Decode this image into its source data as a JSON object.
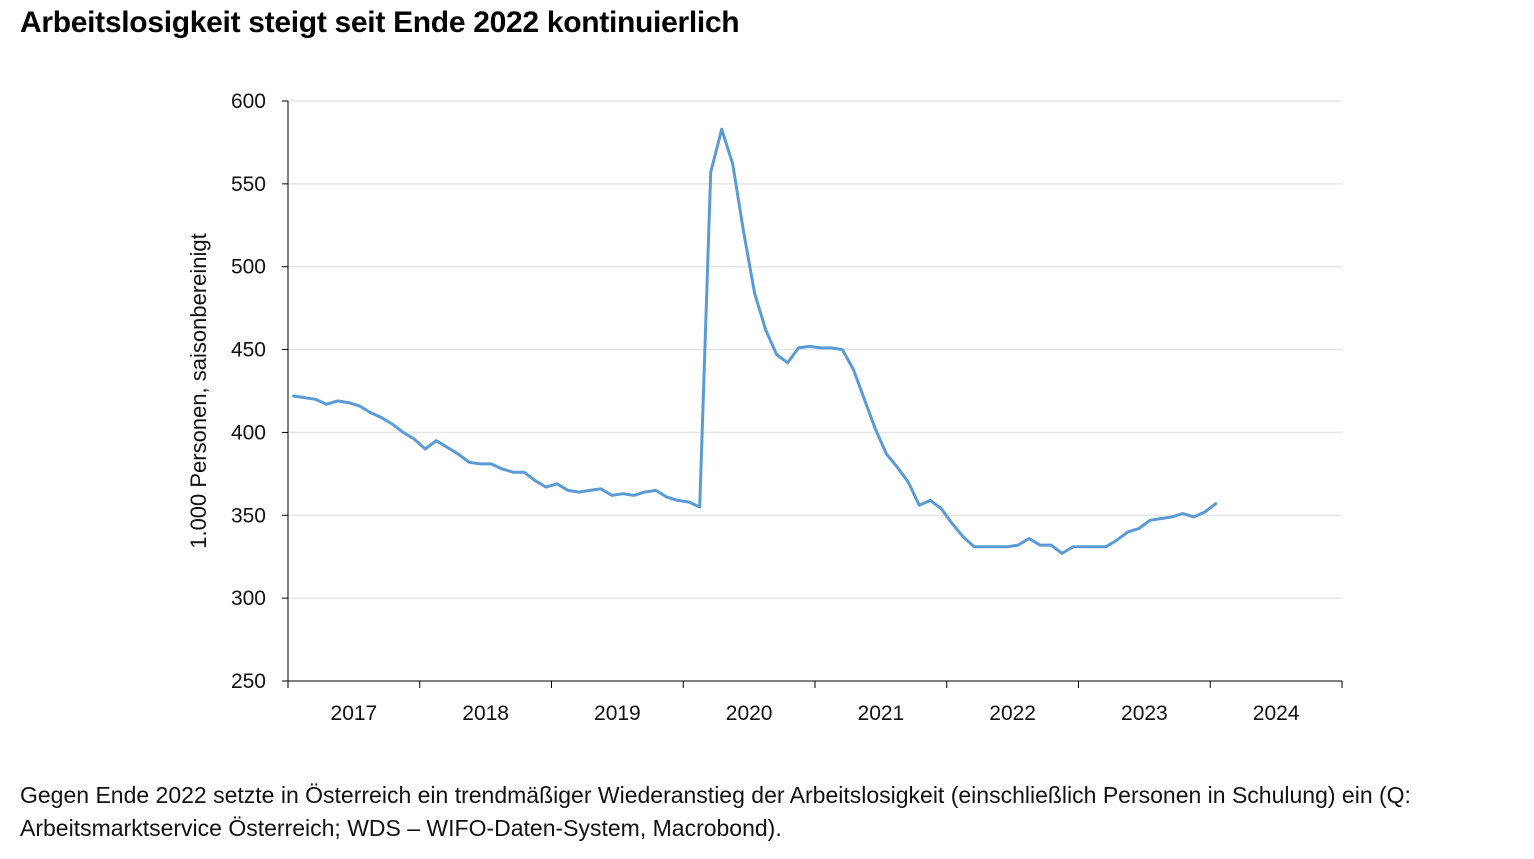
{
  "title": "Arbeitslosigkeit steigt seit Ende 2022 kontinuierlich",
  "caption": "Gegen Ende 2022 setzte in Österreich ein trendmäßiger Wiederanstieg der Arbeitslosigkeit (einschließlich Personen in Schulung) ein (Q: Arbeitsmarktservice Österreich; WDS – WIFO-Daten-System, Macrobond).",
  "colors": {
    "series": "#5b9bd5",
    "axis": "#000000",
    "grid": "#e6e6e6"
  },
  "chart_data": {
    "type": "line",
    "title": "Arbeitslosigkeit steigt seit Ende 2022 kontinuierlich",
    "xlabel": "",
    "ylabel": "1.000 Personen, saisonbereinigt",
    "ylim": [
      250,
      600
    ],
    "yticks": [
      "250",
      "300",
      "350",
      "400",
      "450",
      "500",
      "550",
      "600"
    ],
    "xticks": [
      "2017",
      "2018",
      "2019",
      "2020",
      "2021",
      "2022",
      "2023",
      "2024"
    ],
    "xrange": [
      "2017-01",
      "2024-12"
    ],
    "grid": true,
    "legend": "none",
    "series": [
      {
        "start": "2017-01",
        "frequency": "monthly",
        "values": [
          422,
          421,
          420,
          417,
          419,
          418,
          416,
          412,
          409,
          405,
          400,
          396,
          390,
          395,
          391,
          387,
          382,
          381,
          381,
          378,
          376,
          376,
          371,
          367,
          369,
          365,
          364,
          365,
          366,
          362,
          363,
          362,
          364,
          365,
          361,
          359,
          358,
          355,
          557,
          583,
          562,
          521,
          484,
          462,
          447,
          442,
          451,
          452,
          451,
          451,
          450,
          438,
          420,
          402,
          387,
          379,
          370,
          356,
          359,
          354,
          345,
          337,
          331,
          331,
          331,
          331,
          332,
          336,
          332,
          332,
          327,
          331,
          331,
          331,
          331,
          335,
          340,
          342,
          347,
          348,
          349,
          351,
          349,
          352,
          357
        ]
      }
    ]
  }
}
